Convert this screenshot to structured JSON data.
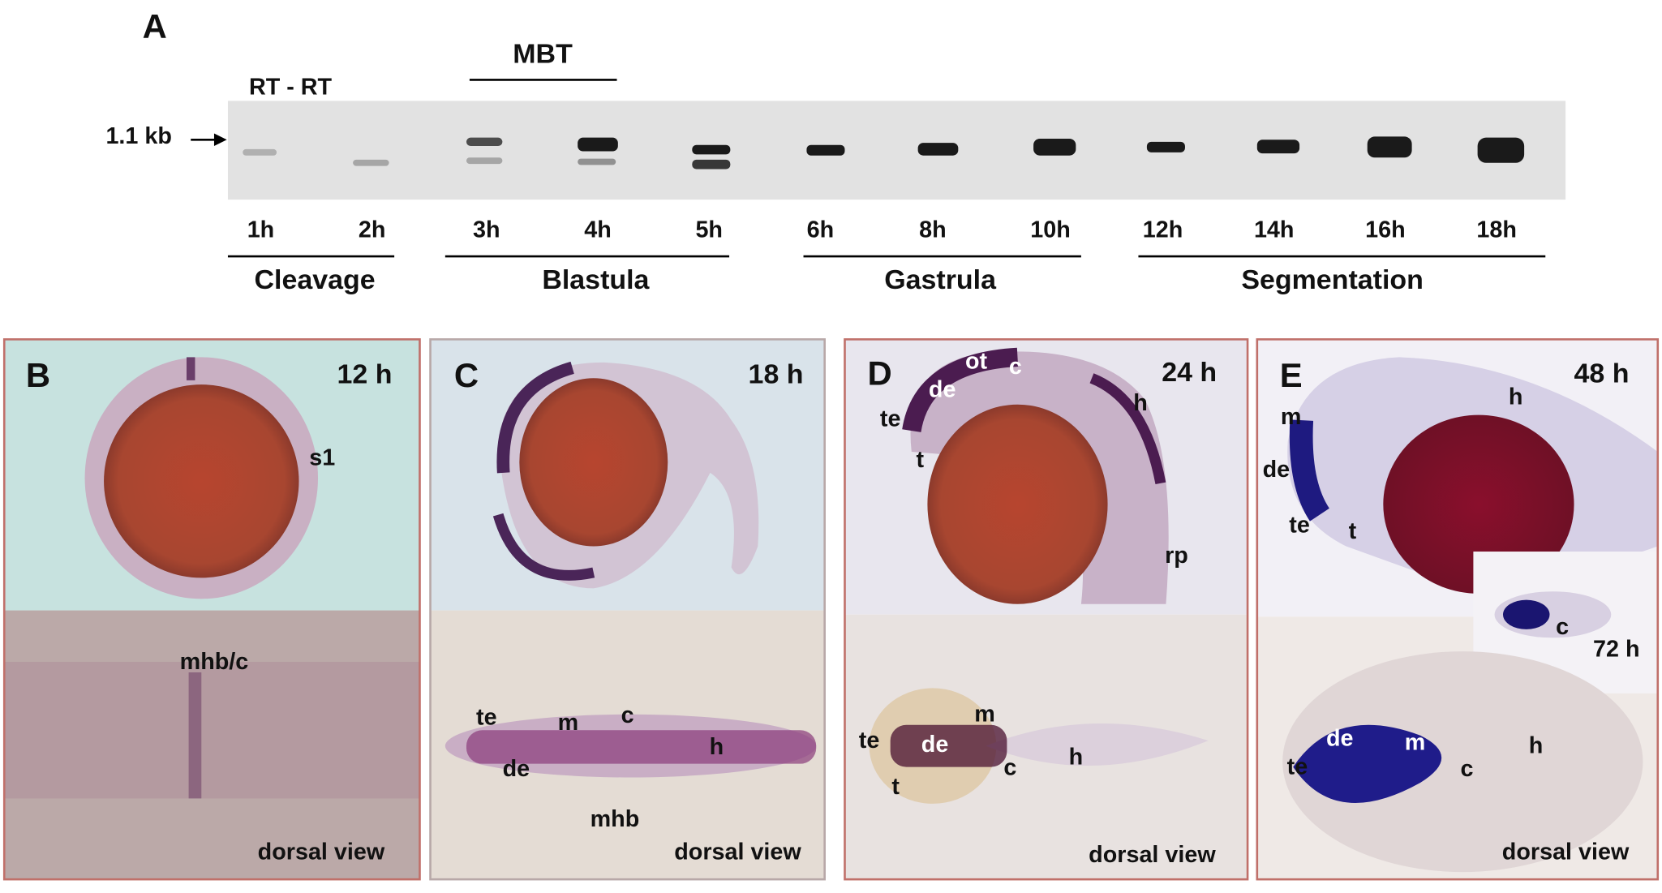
{
  "panel_a": {
    "label": "A",
    "mbt": "MBT",
    "control": "RT - RT",
    "marker": "1.1 kb",
    "lanes": [
      "1h",
      "2h",
      "3h",
      "4h",
      "5h",
      "6h",
      "8h",
      "10h",
      "12h",
      "14h",
      "16h",
      "18h"
    ],
    "stages": [
      "Cleavage",
      "Blastula",
      "Gastrula",
      "Segmentation"
    ]
  },
  "panels": [
    {
      "label": "B",
      "time": "12 h",
      "labels": [
        "s1",
        "mhb/c"
      ],
      "view": "dorsal view"
    },
    {
      "label": "C",
      "time": "18 h",
      "labels": [
        "te",
        "m",
        "c",
        "h",
        "de",
        "mhb"
      ],
      "view": "dorsal view"
    },
    {
      "label": "D",
      "time": "24 h",
      "labels": [
        "ot",
        "c",
        "de",
        "h",
        "te",
        "t",
        "rp",
        "te",
        "m",
        "de",
        "c",
        "t",
        "h"
      ],
      "view": "dorsal view"
    },
    {
      "label": "E",
      "time": "48 h",
      "labels": [
        "m",
        "h",
        "de",
        "te",
        "t",
        "c",
        "te",
        "de",
        "m",
        "c",
        "h"
      ],
      "view": "dorsal view",
      "inset": {
        "time": "72 h",
        "label": "c"
      }
    }
  ]
}
